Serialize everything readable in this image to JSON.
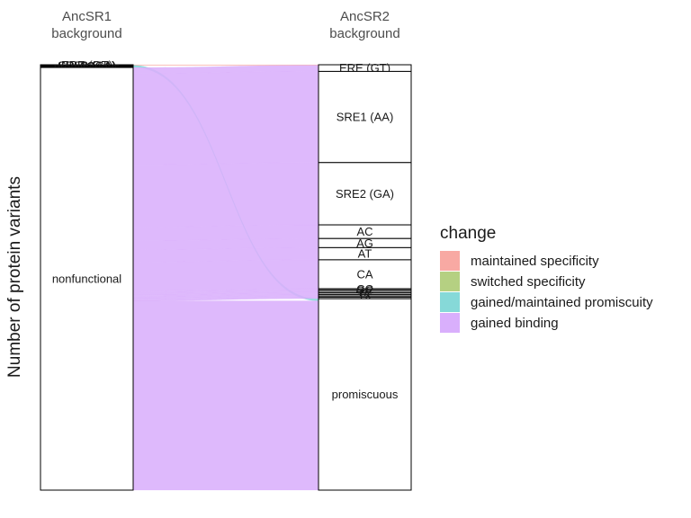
{
  "chart_data": {
    "type": "alluvial",
    "ylabel": "Number of protein variants",
    "axes": [
      "AncSR1\nbackground",
      "AncSR2\nbackground"
    ],
    "legend": {
      "title": "change",
      "placement": "right",
      "entries": [
        {
          "name": "maintained specificity",
          "color": "#F8A9A3"
        },
        {
          "name": "switched specificity",
          "color": "#B5D082"
        },
        {
          "name": "gained/maintained promiscuity",
          "color": "#86D9D8"
        },
        {
          "name": "gained binding",
          "color": "#D9AFFC"
        }
      ]
    },
    "strata_left": [
      {
        "label": "ERE (GT)",
        "value": 2
      },
      {
        "label": "SRE1 (AA)",
        "value": 1
      },
      {
        "label": "SRE2 (GA)",
        "value": 1
      },
      {
        "label": "AC",
        "value": 1
      },
      {
        "label": "AG",
        "value": 1
      },
      {
        "label": "promiscuous",
        "value": 3
      },
      {
        "label": "nonfunctional",
        "value": 1391
      }
    ],
    "strata_right": [
      {
        "label": "ERE (GT)",
        "value": 22
      },
      {
        "label": "SRE1 (AA)",
        "value": 300
      },
      {
        "label": "SRE2 (GA)",
        "value": 205
      },
      {
        "label": "AC",
        "value": 45
      },
      {
        "label": "AG",
        "value": 30
      },
      {
        "label": "AT",
        "value": 40
      },
      {
        "label": "CA",
        "value": 95
      },
      {
        "label": "CC",
        "value": 4
      },
      {
        "label": "GC",
        "value": 5
      },
      {
        "label": "GG",
        "value": 5
      },
      {
        "label": "TC",
        "value": 5
      },
      {
        "label": "TG",
        "value": 5
      },
      {
        "label": "TT",
        "value": 4
      },
      {
        "label": "TA",
        "value": 5
      },
      {
        "label": "promiscuous",
        "value": 630
      }
    ],
    "flows": [
      {
        "from": "ERE (GT)",
        "to": "ERE (GT)",
        "value": 2,
        "change": "maintained specificity"
      },
      {
        "from": "SRE1 (AA)",
        "to": "promiscuous",
        "value": 1,
        "change": "gained/maintained promiscuity"
      },
      {
        "from": "SRE2 (GA)",
        "to": "promiscuous",
        "value": 1,
        "change": "gained/maintained promiscuity"
      },
      {
        "from": "AC",
        "to": "promiscuous",
        "value": 1,
        "change": "gained/maintained promiscuity"
      },
      {
        "from": "AG",
        "to": "promiscuous",
        "value": 1,
        "change": "gained/maintained promiscuity"
      },
      {
        "from": "promiscuous",
        "to": "promiscuous",
        "value": 3,
        "change": "gained/maintained promiscuity"
      },
      {
        "from": "nonfunctional",
        "to": "ERE (GT)",
        "value": 20,
        "change": "gained binding"
      },
      {
        "from": "nonfunctional",
        "to": "SRE1 (AA)",
        "value": 300,
        "change": "gained binding"
      },
      {
        "from": "nonfunctional",
        "to": "SRE2 (GA)",
        "value": 205,
        "change": "gained binding"
      },
      {
        "from": "nonfunctional",
        "to": "AC",
        "value": 45,
        "change": "gained binding"
      },
      {
        "from": "nonfunctional",
        "to": "AG",
        "value": 30,
        "change": "gained binding"
      },
      {
        "from": "nonfunctional",
        "to": "AT",
        "value": 40,
        "change": "gained binding"
      },
      {
        "from": "nonfunctional",
        "to": "CA",
        "value": 95,
        "change": "gained binding"
      },
      {
        "from": "nonfunctional",
        "to": "CC",
        "value": 4,
        "change": "gained binding"
      },
      {
        "from": "nonfunctional",
        "to": "GC",
        "value": 5,
        "change": "gained binding"
      },
      {
        "from": "nonfunctional",
        "to": "GG",
        "value": 5,
        "change": "gained binding"
      },
      {
        "from": "nonfunctional",
        "to": "TC",
        "value": 5,
        "change": "gained binding"
      },
      {
        "from": "nonfunctional",
        "to": "TG",
        "value": 5,
        "change": "gained binding"
      },
      {
        "from": "nonfunctional",
        "to": "TT",
        "value": 4,
        "change": "gained binding"
      },
      {
        "from": "nonfunctional",
        "to": "TA",
        "value": 5,
        "change": "gained binding"
      },
      {
        "from": "nonfunctional",
        "to": "promiscuous",
        "value": 623,
        "change": "gained binding"
      }
    ]
  }
}
